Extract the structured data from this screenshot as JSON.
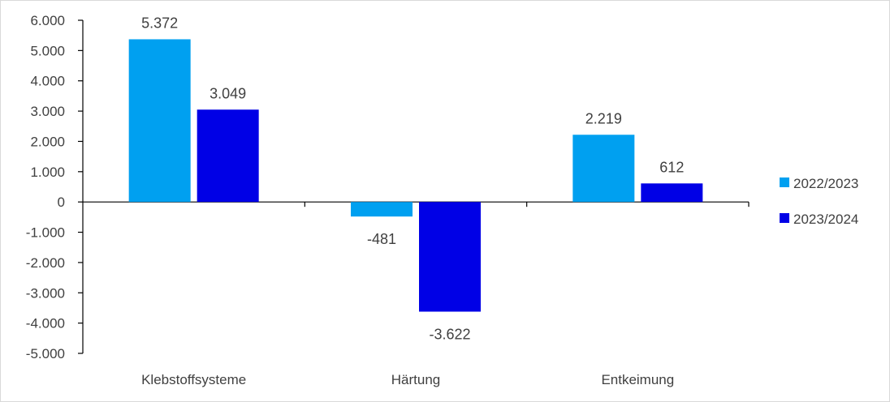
{
  "chart_data": {
    "type": "bar",
    "title": "",
    "xlabel": "",
    "ylabel": "",
    "categories": [
      "Klebstoffsysteme",
      "Härtung",
      "Entkeimung"
    ],
    "series": [
      {
        "name": "2022/2023",
        "color": "#00a0f0",
        "values": [
          5372,
          -481,
          2219
        ],
        "labels": [
          "5.372",
          "-481",
          "2.219"
        ]
      },
      {
        "name": "2023/2024",
        "color": "#0000e6",
        "values": [
          3049,
          -3622,
          612
        ],
        "labels": [
          "3.049",
          "-3.622",
          "612"
        ]
      }
    ],
    "ylim": [
      -5000,
      6000
    ],
    "ytick_step": 1000,
    "ytick_labels": [
      "6.000",
      "5.000",
      "4.000",
      "3.000",
      "2.000",
      "1.000",
      "0",
      "-1.000",
      "-2.000",
      "-3.000",
      "-4.000",
      "-5.000"
    ],
    "grid": false,
    "legend_position": "right"
  }
}
